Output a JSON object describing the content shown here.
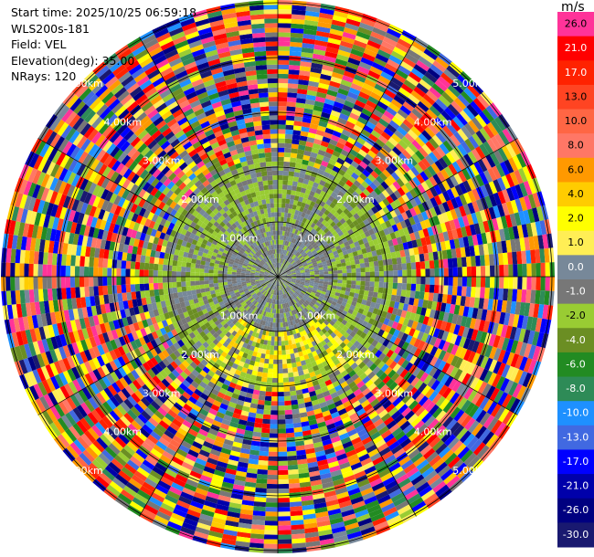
{
  "info": {
    "start_time": "Start time: 2025/10/25 06:59:18",
    "instrument": "WLS200s-181",
    "field": "Field: VEL",
    "elevation": "Elevation(deg): 35.00",
    "nrays": "NRays: 120"
  },
  "colorbar": {
    "unit": "m/s",
    "bins": [
      {
        "label": "26.0",
        "color": "#ff3399"
      },
      {
        "label": "21.0",
        "color": "#ff0000"
      },
      {
        "label": "17.0",
        "color": "#ff2200"
      },
      {
        "label": "13.0",
        "color": "#ff4422"
      },
      {
        "label": "10.0",
        "color": "#ff6644"
      },
      {
        "label": "8.0",
        "color": "#ff7766"
      },
      {
        "label": "6.0",
        "color": "#ff9900"
      },
      {
        "label": "4.0",
        "color": "#ffcc00"
      },
      {
        "label": "2.0",
        "color": "#ffff00"
      },
      {
        "label": "1.0",
        "color": "#ffee55"
      },
      {
        "label": "0.0",
        "color": "#778899"
      },
      {
        "label": "-1.0",
        "color": "#777777"
      },
      {
        "label": "-2.0",
        "color": "#99cc33"
      },
      {
        "label": "-4.0",
        "color": "#6b8e23"
      },
      {
        "label": "-6.0",
        "color": "#228b22"
      },
      {
        "label": "-8.0",
        "color": "#2e8b57"
      },
      {
        "label": "-10.0",
        "color": "#1e90ff"
      },
      {
        "label": "-13.0",
        "color": "#4169e1"
      },
      {
        "label": "-17.0",
        "color": "#0000ff"
      },
      {
        "label": "-21.0",
        "color": "#0000aa"
      },
      {
        "label": "-26.0",
        "color": "#000080"
      },
      {
        "label": "-30.0",
        "color": "#191970"
      }
    ]
  },
  "ranges": {
    "ring_labels": [
      "1.00km",
      "2.00km",
      "3.00km",
      "4.00km",
      "5.00km"
    ]
  }
}
